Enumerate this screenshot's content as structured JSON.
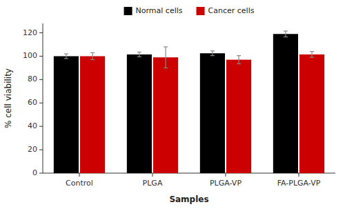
{
  "chart_data": {
    "type": "bar",
    "categories": [
      "Control",
      "PLGA",
      "PLGA-VP",
      "FA-PLGA-VP"
    ],
    "series": [
      {
        "name": "Normal cells",
        "color": "#000000",
        "values": [
          100,
          101.5,
          102.5,
          119
        ],
        "errors": [
          2,
          2,
          2,
          2.5
        ]
      },
      {
        "name": "Cancer cells",
        "color": "#cc0000",
        "values": [
          100,
          99,
          97,
          101.5
        ],
        "errors": [
          3,
          9,
          3.5,
          2.5
        ]
      }
    ],
    "xlabel": "Samples",
    "ylabel": "% cell viability",
    "ylim": [
      0,
      128
    ],
    "yticks": [
      0,
      20,
      40,
      60,
      80,
      100,
      120
    ],
    "legend": "upper center",
    "grid": false
  }
}
